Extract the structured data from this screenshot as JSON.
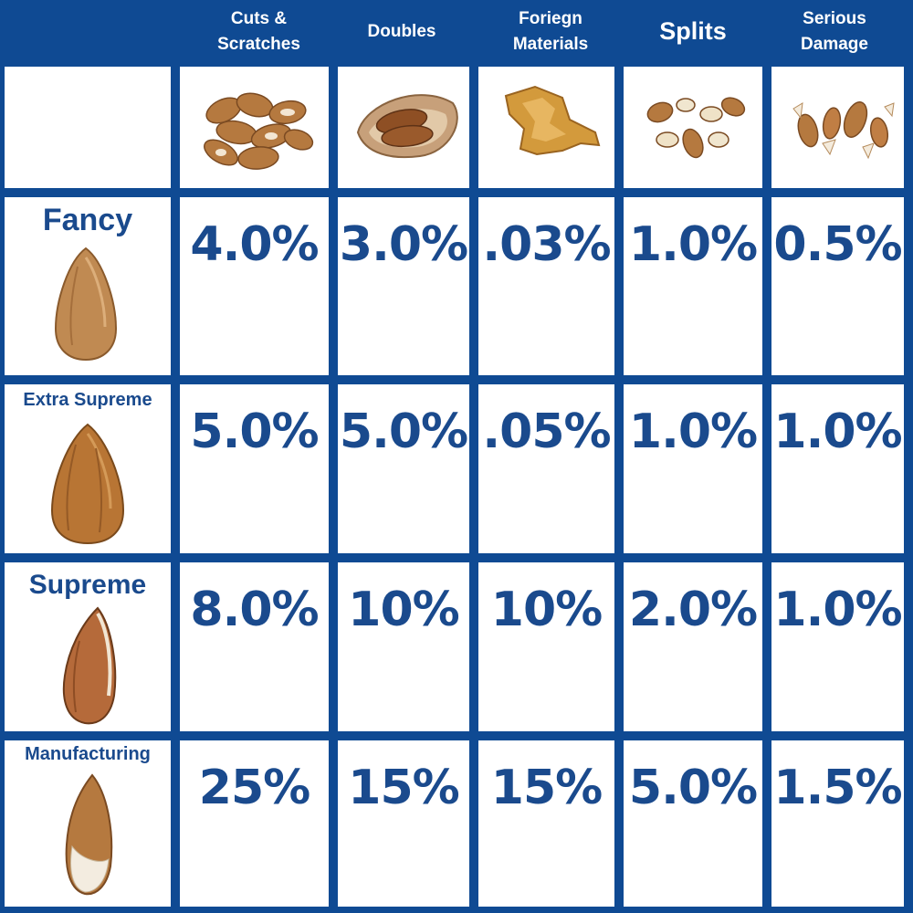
{
  "columns": [
    "Cuts & Scratches",
    "Doubles",
    "Foriegn Materials",
    "Splits",
    "Serious Damage"
  ],
  "grades": [
    {
      "name": "Fancy",
      "values": [
        "4.0%",
        "3.0%",
        ".03%",
        "1.0%",
        "0.5%"
      ]
    },
    {
      "name": "Extra Supreme",
      "values": [
        "5.0%",
        "5.0%",
        ".05%",
        "1.0%",
        "1.0%"
      ]
    },
    {
      "name": "Supreme",
      "values": [
        "8.0%",
        "10%",
        "10%",
        "2.0%",
        "1.0%"
      ]
    },
    {
      "name": "Manufacturing",
      "values": [
        "25%",
        "15%",
        "15%",
        "5.0%",
        "1.5%"
      ]
    }
  ],
  "icons": {
    "columns": [
      "almonds-cuts-icon",
      "almond-double-icon",
      "foreign-material-icon",
      "almond-splits-icon",
      "damaged-almonds-icon"
    ],
    "grades": [
      "almond-fancy-icon",
      "almond-extra-supreme-icon",
      "almond-supreme-icon",
      "almond-manufacturing-icon"
    ]
  },
  "colors": {
    "grid": "#0f4a93",
    "text": "#1a4a8d",
    "header_text": "#ffffff",
    "almond": "#b5793f"
  }
}
